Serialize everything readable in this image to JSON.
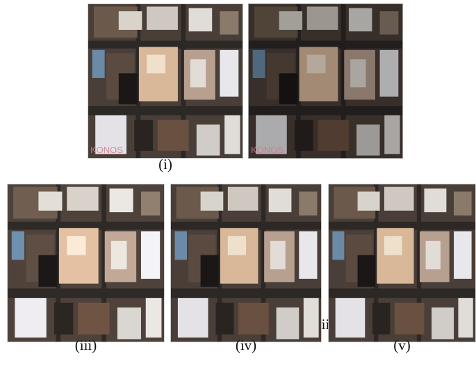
{
  "panels": [
    {
      "caption": "(i)",
      "watermark": "KONOS"
    },
    {
      "caption": "(ii)",
      "watermark": "KONOS"
    },
    {
      "caption": "(iii)"
    },
    {
      "caption": "(iv)"
    },
    {
      "caption": "(v)"
    }
  ]
}
